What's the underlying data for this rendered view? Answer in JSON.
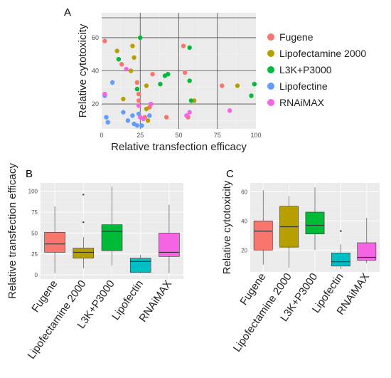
{
  "panel_labels": {
    "a": "A",
    "b": "B",
    "c": "C"
  },
  "chart_data": [
    {
      "type": "scatter",
      "title": "",
      "xlabel": "Relative transfection efficacy",
      "ylabel": "Relative cytotoxicity",
      "xlim": [
        0,
        100
      ],
      "ylim": [
        5,
        75
      ],
      "xticks": [
        "0",
        "25",
        "50",
        "75",
        "100"
      ],
      "yticks": [
        "20",
        "40",
        "60"
      ],
      "xtick_values": [
        0,
        25,
        50,
        75,
        100
      ],
      "ytick_values": [
        20,
        40,
        60
      ],
      "grid": true,
      "background": "#ebebeb",
      "legend_position": "right",
      "series": [
        {
          "name": "Fugene",
          "color": "#f8766d",
          "points": [
            {
              "x": 2,
              "y": 58
            },
            {
              "x": 13,
              "y": 44
            },
            {
              "x": 23,
              "y": 33
            },
            {
              "x": 24,
              "y": 26
            },
            {
              "x": 24,
              "y": 22
            },
            {
              "x": 28,
              "y": 12
            },
            {
              "x": 31,
              "y": 18
            },
            {
              "x": 33,
              "y": 38
            },
            {
              "x": 42,
              "y": 12
            },
            {
              "x": 53,
              "y": 55
            },
            {
              "x": 54,
              "y": 39
            },
            {
              "x": 56,
              "y": 12
            },
            {
              "x": 78,
              "y": 31
            }
          ]
        },
        {
          "name": "Lipofectamine 2000",
          "color": "#b79f00",
          "points": [
            {
              "x": 10,
              "y": 52
            },
            {
              "x": 14,
              "y": 23
            },
            {
              "x": 19,
              "y": 40
            },
            {
              "x": 20,
              "y": 55
            },
            {
              "x": 21,
              "y": 48
            },
            {
              "x": 29,
              "y": 31
            },
            {
              "x": 29,
              "y": 17
            },
            {
              "x": 30,
              "y": 10
            },
            {
              "x": 60,
              "y": 22
            },
            {
              "x": 88,
              "y": 31
            }
          ]
        },
        {
          "name": "L3K+P3000",
          "color": "#00ba38",
          "points": [
            {
              "x": 11,
              "y": 47
            },
            {
              "x": 23,
              "y": 29
            },
            {
              "x": 25,
              "y": 60
            },
            {
              "x": 38,
              "y": 32
            },
            {
              "x": 41,
              "y": 37
            },
            {
              "x": 43,
              "y": 38
            },
            {
              "x": 57,
              "y": 54
            },
            {
              "x": 57,
              "y": 34
            },
            {
              "x": 58,
              "y": 22
            },
            {
              "x": 97,
              "y": 25
            },
            {
              "x": 99,
              "y": 32
            }
          ]
        },
        {
          "name": "Lipofectine",
          "color": "#619cff",
          "points": [
            {
              "x": 2,
              "y": 25
            },
            {
              "x": 3,
              "y": 12
            },
            {
              "x": 4,
              "y": 9
            },
            {
              "x": 7,
              "y": 33
            },
            {
              "x": 14,
              "y": 15
            },
            {
              "x": 17,
              "y": 10
            },
            {
              "x": 20,
              "y": 13
            },
            {
              "x": 21,
              "y": 8
            },
            {
              "x": 23,
              "y": 7
            },
            {
              "x": 24,
              "y": 14
            },
            {
              "x": 26,
              "y": 7
            },
            {
              "x": 31,
              "y": 13
            }
          ]
        },
        {
          "name": "RNAiMAX",
          "color": "#f564e3",
          "points": [
            {
              "x": 2,
              "y": 26
            },
            {
              "x": 16,
              "y": 41
            },
            {
              "x": 24,
              "y": 19
            },
            {
              "x": 25,
              "y": 12
            },
            {
              "x": 27,
              "y": 11
            },
            {
              "x": 32,
              "y": 20
            },
            {
              "x": 55,
              "y": 13
            },
            {
              "x": 57,
              "y": 15
            },
            {
              "x": 83,
              "y": 16
            }
          ]
        }
      ]
    },
    {
      "type": "box",
      "title": "",
      "xlabel": "",
      "ylabel": "Relative transfection efficacy",
      "ylim": [
        -5,
        110
      ],
      "yticks": [
        "0",
        "25",
        "50",
        "75",
        "100"
      ],
      "ytick_values": [
        0,
        25,
        50,
        75,
        100
      ],
      "categories": [
        "Fugene",
        "Lipofectamine 2000",
        "L3K+P3000",
        "Lipofectin",
        "RNAiMAX"
      ],
      "boxes": [
        {
          "name": "Fugene",
          "color": "#f8766d",
          "min": 2,
          "q1": 27,
          "median": 37,
          "q3": 51,
          "max": 82,
          "outliers": []
        },
        {
          "name": "Lipofectamine 2000",
          "color": "#b79f00",
          "min": 8,
          "q1": 20,
          "median": 27,
          "q3": 32,
          "max": 45,
          "outliers": [
            63,
            96
          ]
        },
        {
          "name": "L3K+P3000",
          "color": "#00ba38",
          "min": 11,
          "q1": 29,
          "median": 52,
          "q3": 60,
          "max": 106,
          "outliers": []
        },
        {
          "name": "Lipofectin",
          "color": "#00bfc4",
          "min": 2,
          "q1": 3,
          "median": 16,
          "q3": 20,
          "max": 24,
          "outliers": []
        },
        {
          "name": "RNAiMAX",
          "color": "#f564e3",
          "min": 2,
          "q1": 22,
          "median": 27,
          "q3": 50,
          "max": 84,
          "outliers": []
        }
      ]
    },
    {
      "type": "box",
      "title": "",
      "xlabel": "",
      "ylabel": "Relative cytotoxicity",
      "ylim": [
        5,
        66
      ],
      "yticks": [
        "20",
        "40",
        "60"
      ],
      "ytick_values": [
        20,
        40,
        60
      ],
      "categories": [
        "Fugene",
        "Lipofectamine 2000",
        "L3K+P3000",
        "Lipofectin",
        "RNAiMAX"
      ],
      "boxes": [
        {
          "name": "Fugene",
          "color": "#f8766d",
          "min": 10,
          "q1": 20,
          "median": 33,
          "q3": 40,
          "max": 61,
          "outliers": []
        },
        {
          "name": "Lipofectamine 2000",
          "color": "#b79f00",
          "min": 8,
          "q1": 22,
          "median": 36,
          "q3": 50,
          "max": 57,
          "outliers": []
        },
        {
          "name": "L3K+P3000",
          "color": "#00ba38",
          "min": 20,
          "q1": 31,
          "median": 37,
          "q3": 46,
          "max": 63,
          "outliers": []
        },
        {
          "name": "Lipofectin",
          "color": "#00bfc4",
          "min": 7,
          "q1": 9,
          "median": 12,
          "q3": 18,
          "max": 24,
          "outliers": [
            33
          ]
        },
        {
          "name": "RNAiMAX",
          "color": "#f564e3",
          "min": 11,
          "q1": 13,
          "median": 15,
          "q3": 25,
          "max": 42,
          "outliers": []
        }
      ]
    }
  ]
}
